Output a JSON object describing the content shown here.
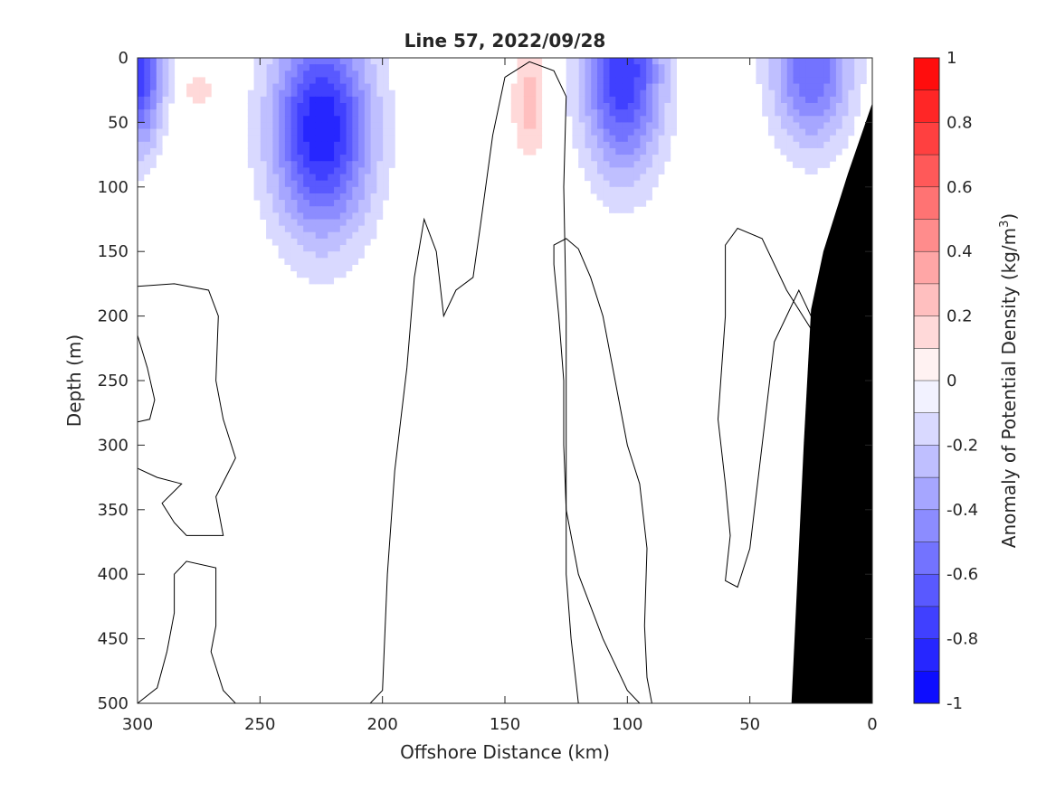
{
  "chart_data": {
    "type": "heatmap",
    "title": "Line 57, 2022/09/28",
    "xlabel": "Offshore Distance (km)",
    "ylabel": "Depth (m)",
    "colorbar_label": "Anomaly of Potential Density (kg/m",
    "colorbar_label_sup": "3",
    "colorbar_label_close": ")",
    "xlim": [
      300,
      0
    ],
    "ylim": [
      0,
      500
    ],
    "x_reversed": true,
    "y_reversed": true,
    "xticks": [
      300,
      250,
      200,
      150,
      100,
      50,
      0
    ],
    "xtick_labels": [
      "300",
      "250",
      "200",
      "150",
      "100",
      "50",
      "0"
    ],
    "yticks": [
      0,
      50,
      100,
      150,
      200,
      250,
      300,
      350,
      400,
      450,
      500
    ],
    "ytick_labels": [
      "0",
      "50",
      "100",
      "150",
      "200",
      "250",
      "300",
      "350",
      "400",
      "450",
      "500"
    ],
    "clim": [
      -1,
      1
    ],
    "colorbar_ticks": [
      1,
      0.8,
      0.6,
      0.4,
      0.2,
      0,
      -0.2,
      -0.4,
      -0.6,
      -0.8,
      -1
    ],
    "colorbar_tick_labels": [
      "1",
      "0.8",
      "0.6",
      "0.4",
      "0.2",
      "0",
      "-0.2",
      "-0.4",
      "-0.6",
      "-0.8",
      "-1"
    ],
    "colorbar_levels": 20,
    "colors": {
      "positive_max": "#ff0000",
      "negative_max": "#0000ff",
      "neutral": "#ffffff",
      "bathymetry": "#000000",
      "contour": "#000000"
    },
    "grid": false,
    "anomaly_features": [
      {
        "x_km": 300,
        "depth_m": 8,
        "value": -0.8,
        "sx_km": 10,
        "sz_m": 60
      },
      {
        "x_km": 225,
        "depth_m": 55,
        "value": -0.9,
        "sx_km": 20,
        "sz_m": 80
      },
      {
        "x_km": 102,
        "depth_m": 12,
        "value": -0.8,
        "sx_km": 16,
        "sz_m": 75
      },
      {
        "x_km": 25,
        "depth_m": 8,
        "value": -0.6,
        "sx_km": 16,
        "sz_m": 60
      },
      {
        "x_km": 140,
        "depth_m": 35,
        "value": 0.25,
        "sx_km": 7,
        "sz_m": 45
      },
      {
        "x_km": 275,
        "depth_m": 25,
        "value": 0.2,
        "sx_km": 5,
        "sz_m": 12
      }
    ],
    "bathymetry": [
      {
        "x_km": 0,
        "depth_m": 35
      },
      {
        "x_km": 10,
        "depth_m": 90
      },
      {
        "x_km": 20,
        "depth_m": 150
      },
      {
        "x_km": 25,
        "depth_m": 195
      },
      {
        "x_km": 28,
        "depth_m": 300
      },
      {
        "x_km": 29,
        "depth_m": 340
      },
      {
        "x_km": 33,
        "depth_m": 500
      }
    ],
    "zero_contours": [
      [
        [
          300,
          215
        ],
        [
          296,
          240
        ],
        [
          293,
          265
        ],
        [
          295,
          280
        ],
        [
          300,
          282
        ]
      ],
      [
        [
          300,
          318
        ],
        [
          292,
          325
        ],
        [
          282,
          330
        ],
        [
          290,
          345
        ],
        [
          285,
          360
        ],
        [
          280,
          370
        ],
        [
          265,
          370
        ],
        [
          268,
          340
        ],
        [
          260,
          310
        ],
        [
          265,
          280
        ],
        [
          268,
          250
        ],
        [
          267,
          200
        ],
        [
          271,
          180
        ],
        [
          285,
          175
        ],
        [
          300,
          177
        ]
      ],
      [
        [
          300,
          500
        ],
        [
          292,
          488
        ],
        [
          288,
          460
        ],
        [
          285,
          430
        ],
        [
          285,
          400
        ],
        [
          280,
          390
        ],
        [
          268,
          395
        ],
        [
          268,
          440
        ],
        [
          270,
          460
        ],
        [
          265,
          490
        ],
        [
          260,
          500
        ]
      ],
      [
        [
          205,
          500
        ],
        [
          200,
          490
        ],
        [
          198,
          400
        ],
        [
          195,
          320
        ],
        [
          190,
          240
        ],
        [
          187,
          170
        ],
        [
          183,
          125
        ],
        [
          178,
          150
        ],
        [
          175,
          200
        ],
        [
          170,
          180
        ],
        [
          163,
          170
        ],
        [
          160,
          130
        ],
        [
          155,
          60
        ],
        [
          150,
          15
        ],
        [
          140,
          3
        ],
        [
          130,
          10
        ],
        [
          125,
          30
        ],
        [
          126,
          100
        ],
        [
          125,
          200
        ],
        [
          125,
          300
        ],
        [
          125,
          400
        ],
        [
          123,
          450
        ],
        [
          120,
          500
        ]
      ],
      [
        [
          90,
          500
        ],
        [
          92,
          480
        ],
        [
          93,
          440
        ],
        [
          92,
          380
        ],
        [
          95,
          330
        ],
        [
          100,
          300
        ],
        [
          105,
          250
        ],
        [
          110,
          200
        ],
        [
          115,
          170
        ],
        [
          120,
          148
        ],
        [
          125,
          140
        ],
        [
          130,
          145
        ],
        [
          130,
          160
        ],
        [
          128,
          200
        ],
        [
          126,
          250
        ],
        [
          126,
          300
        ],
        [
          125,
          350
        ],
        [
          120,
          400
        ],
        [
          110,
          450
        ],
        [
          100,
          490
        ],
        [
          95,
          500
        ]
      ],
      [
        [
          20,
          225
        ],
        [
          25,
          210
        ],
        [
          35,
          180
        ],
        [
          45,
          140
        ],
        [
          55,
          132
        ],
        [
          60,
          145
        ],
        [
          60,
          200
        ],
        [
          63,
          280
        ],
        [
          60,
          330
        ],
        [
          58,
          370
        ],
        [
          60,
          405
        ],
        [
          55,
          410
        ],
        [
          50,
          380
        ],
        [
          45,
          300
        ],
        [
          40,
          220
        ],
        [
          35,
          200
        ],
        [
          30,
          180
        ],
        [
          25,
          200
        ],
        [
          22,
          225
        ]
      ]
    ]
  }
}
